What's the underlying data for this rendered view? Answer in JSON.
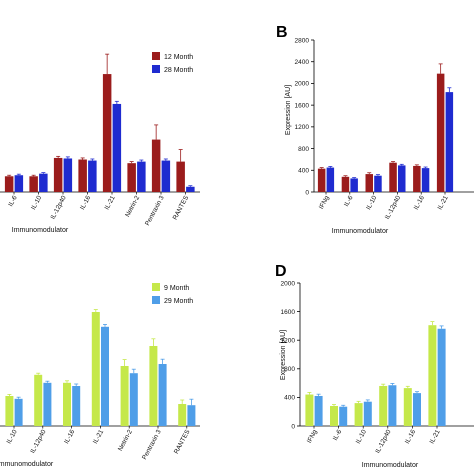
{
  "chart_data": [
    {
      "id": "A",
      "type": "bar",
      "panel_letter": "",
      "categories": [
        "IL-6",
        "IL-10",
        "IL-12p40",
        "IL-16",
        "IL-21",
        "Netrin-2",
        "Pentraxin 3",
        "RANTES"
      ],
      "series": [
        {
          "name": "12 Month",
          "color": "#9b1c1c",
          "values": [
            30,
            30,
            65,
            62,
            225,
            55,
            100,
            58
          ],
          "errors": [
            2,
            2,
            3,
            3,
            38,
            3,
            28,
            23
          ]
        },
        {
          "name": "28 Month",
          "color": "#1f2bd0",
          "values": [
            32,
            35,
            64,
            60,
            168,
            58,
            60,
            10
          ],
          "errors": [
            2,
            2,
            3,
            3,
            5,
            3,
            3,
            2
          ]
        }
      ],
      "xlabel": "Immunomodulator",
      "ylabel": "",
      "ylim": [
        0,
        290
      ],
      "legend_position": "top-right"
    },
    {
      "id": "B",
      "type": "bar",
      "panel_letter": "B",
      "categories": [
        "IFNg",
        "IL-6",
        "IL-10",
        "IL-12p40",
        "IL-16",
        "IL-21"
      ],
      "series": [
        {
          "name": "12 Month",
          "color": "#9b1c1c",
          "values": [
            430,
            280,
            330,
            540,
            480,
            2180
          ],
          "errors": [
            20,
            20,
            25,
            20,
            20,
            180
          ]
        },
        {
          "name": "28 Month",
          "color": "#1f2bd0",
          "values": [
            450,
            250,
            300,
            490,
            440,
            1840
          ],
          "errors": [
            20,
            15,
            20,
            20,
            20,
            80
          ]
        }
      ],
      "xlabel": "Immunomodulator",
      "ylabel": "Expression [AU]",
      "yticks": [
        "0",
        "400",
        "800",
        "1200",
        "1600",
        "2000",
        "2400",
        "2800"
      ],
      "ylim": [
        0,
        2800
      ]
    },
    {
      "id": "C",
      "type": "bar",
      "panel_letter": "",
      "categories": [
        "IL-10",
        "IL-12p40",
        "IL-16",
        "IL-21",
        "Netrin-2",
        "Pentraxin 3",
        "RANTES"
      ],
      "series": [
        {
          "name": "9 Month",
          "color": "#c5e84a",
          "values": [
            75,
            128,
            108,
            285,
            150,
            200,
            55
          ],
          "errors": [
            4,
            4,
            5,
            6,
            16,
            18,
            10
          ]
        },
        {
          "name": "29 Month",
          "color": "#4f9ee8",
          "values": [
            68,
            108,
            100,
            248,
            132,
            155,
            52
          ],
          "errors": [
            4,
            4,
            5,
            6,
            10,
            12,
            15
          ]
        }
      ],
      "xlabel": "Immunomodulator",
      "ylabel": "",
      "ylim": [
        0,
        340
      ],
      "legend_position": "top-right"
    },
    {
      "id": "D",
      "type": "bar",
      "panel_letter": "D",
      "categories": [
        "IFNg",
        "IL-6",
        "IL-10",
        "IL-12p40",
        "IL-16",
        "IL-21"
      ],
      "series": [
        {
          "name": "9 Month",
          "color": "#c5e84a",
          "values": [
            440,
            280,
            320,
            560,
            530,
            1410
          ],
          "errors": [
            30,
            20,
            25,
            25,
            25,
            50
          ]
        },
        {
          "name": "29 Month",
          "color": "#4f9ee8",
          "values": [
            420,
            270,
            340,
            570,
            460,
            1360
          ],
          "errors": [
            25,
            20,
            25,
            25,
            20,
            40
          ]
        }
      ],
      "xlabel": "Immunomodulator",
      "ylabel": "Expression [AU]",
      "yticks": [
        "0",
        "400",
        "800",
        "1200",
        "1600",
        "2000"
      ],
      "ylim": [
        0,
        2000
      ]
    }
  ]
}
